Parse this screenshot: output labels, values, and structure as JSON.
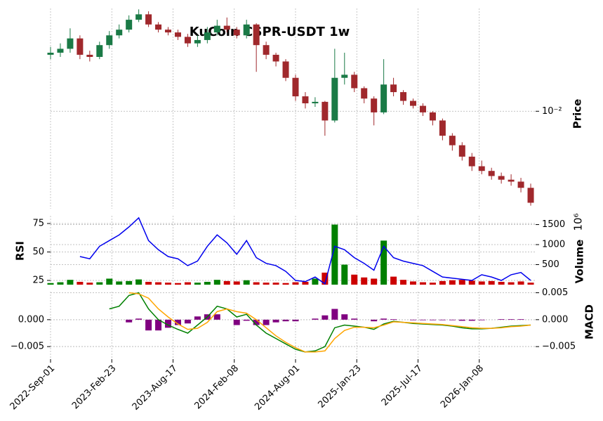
{
  "chart_data": {
    "type": "candlestick",
    "title": "KuCoin CSPR-USDT 1w",
    "ylabel": "Price",
    "ylog": true,
    "grid": true,
    "color_up": "#1a7a46",
    "color_down": "#a0282c",
    "x": [
      "2022-09-01",
      "2022-09-29",
      "2022-10-27",
      "2022-11-24",
      "2022-12-22",
      "2023-01-19",
      "2023-02-16",
      "2023-03-16",
      "2023-04-13",
      "2023-05-11",
      "2023-06-08",
      "2023-07-06",
      "2023-08-03",
      "2023-08-31",
      "2023-09-28",
      "2023-10-26",
      "2023-11-23",
      "2023-12-21",
      "2024-01-18",
      "2024-02-15",
      "2024-03-14",
      "2024-04-11",
      "2024-05-09",
      "2024-06-06",
      "2024-07-04",
      "2024-08-01",
      "2024-08-29",
      "2024-09-26",
      "2024-10-24",
      "2024-11-21",
      "2024-12-19",
      "2025-01-16",
      "2025-02-13",
      "2025-03-13",
      "2025-04-10",
      "2025-05-08",
      "2025-06-05",
      "2025-07-03",
      "2025-07-31",
      "2025-08-28",
      "2025-09-25",
      "2025-10-23",
      "2025-11-20",
      "2025-12-18",
      "2026-01-15",
      "2026-02-12",
      "2026-03-12",
      "2026-04-09",
      "2026-05-07",
      "2026-06-04"
    ],
    "open": [
      0.027,
      0.028,
      0.03,
      0.036,
      0.027,
      0.026,
      0.032,
      0.038,
      0.042,
      0.05,
      0.055,
      0.046,
      0.042,
      0.04,
      0.037,
      0.033,
      0.035,
      0.04,
      0.045,
      0.042,
      0.038,
      0.046,
      0.032,
      0.027,
      0.024,
      0.018,
      0.013,
      0.0115,
      0.0118,
      0.0085,
      0.018,
      0.019,
      0.015,
      0.0125,
      0.0098,
      0.016,
      0.014,
      0.012,
      0.011,
      0.0098,
      0.0085,
      0.0065,
      0.0055,
      0.0045,
      0.0038,
      0.0035,
      0.0032,
      0.003,
      0.0029,
      0.0026
    ],
    "high": [
      0.031,
      0.033,
      0.043,
      0.038,
      0.029,
      0.034,
      0.041,
      0.046,
      0.054,
      0.06,
      0.058,
      0.048,
      0.044,
      0.042,
      0.039,
      0.038,
      0.044,
      0.05,
      0.052,
      0.044,
      0.05,
      0.047,
      0.034,
      0.028,
      0.025,
      0.019,
      0.014,
      0.0128,
      0.012,
      0.03,
      0.028,
      0.02,
      0.0155,
      0.013,
      0.025,
      0.018,
      0.0145,
      0.0125,
      0.0115,
      0.01,
      0.0088,
      0.0068,
      0.0058,
      0.0048,
      0.0042,
      0.0037,
      0.0034,
      0.0033,
      0.0031,
      0.0028
    ],
    "low": [
      0.025,
      0.026,
      0.028,
      0.025,
      0.024,
      0.025,
      0.03,
      0.036,
      0.04,
      0.048,
      0.044,
      0.04,
      0.038,
      0.035,
      0.031,
      0.031,
      0.033,
      0.038,
      0.04,
      0.036,
      0.036,
      0.02,
      0.025,
      0.022,
      0.017,
      0.012,
      0.0105,
      0.0108,
      0.0065,
      0.0082,
      0.016,
      0.014,
      0.0115,
      0.0078,
      0.0095,
      0.013,
      0.0112,
      0.0105,
      0.0092,
      0.0078,
      0.006,
      0.005,
      0.0042,
      0.0035,
      0.0033,
      0.003,
      0.0028,
      0.0027,
      0.0024,
      0.0019
    ],
    "close": [
      0.028,
      0.03,
      0.036,
      0.027,
      0.026,
      0.032,
      0.038,
      0.042,
      0.05,
      0.055,
      0.046,
      0.042,
      0.04,
      0.037,
      0.033,
      0.035,
      0.04,
      0.045,
      0.042,
      0.038,
      0.046,
      0.032,
      0.027,
      0.024,
      0.018,
      0.013,
      0.0115,
      0.0118,
      0.0085,
      0.018,
      0.019,
      0.015,
      0.0125,
      0.0098,
      0.016,
      0.014,
      0.012,
      0.011,
      0.0098,
      0.0085,
      0.0065,
      0.0055,
      0.0045,
      0.0038,
      0.0035,
      0.0032,
      0.003,
      0.0029,
      0.0026,
      0.002
    ],
    "xlim": [
      "2022-09-01",
      "2026-06-18"
    ],
    "xticks": [
      {
        "value": "2022-09-01",
        "label": "2022-Sep-01"
      },
      {
        "value": "2023-02-23",
        "label": "2023-Feb-23"
      },
      {
        "value": "2023-08-17",
        "label": "2023-Aug-17"
      },
      {
        "value": "2024-02-08",
        "label": "2024-Feb-08"
      },
      {
        "value": "2024-08-01",
        "label": "2024-Aug-01"
      },
      {
        "value": "2025-01-23",
        "label": "2025-Jan-23"
      },
      {
        "value": "2025-07-17",
        "label": "2025-Jul-17"
      },
      {
        "value": "2026-01-08",
        "label": "2026-Jan-08"
      }
    ],
    "ylim": [
      0.0018,
      0.061
    ],
    "yticks": [
      {
        "value": 0.01,
        "label": "10⁻²"
      }
    ],
    "volume": {
      "label": "Volume",
      "offset_label": "10⁶",
      "ylim": [
        0,
        1720
      ],
      "yticks": [
        500,
        1000,
        1500
      ],
      "values": [
        40,
        60,
        120,
        70,
        50,
        60,
        150,
        80,
        90,
        130,
        70,
        60,
        50,
        40,
        60,
        50,
        70,
        120,
        90,
        80,
        110,
        60,
        50,
        50,
        40,
        60,
        70,
        150,
        300,
        1500,
        500,
        250,
        180,
        150,
        1100,
        200,
        120,
        80,
        60,
        50,
        90,
        110,
        120,
        100,
        80,
        90,
        70,
        60,
        80,
        50
      ]
    },
    "rsi": {
      "label": "RSI",
      "color": "#0000ee",
      "ylim": [
        21.3,
        81.8
      ],
      "yticks": [
        25,
        50,
        75
      ],
      "values": [
        null,
        null,
        null,
        46,
        44,
        55,
        60,
        65,
        72,
        80,
        60,
        52,
        46,
        44,
        38,
        42,
        55,
        65,
        58,
        48,
        60,
        45,
        40,
        38,
        33,
        25,
        24,
        28,
        22,
        55,
        52,
        45,
        40,
        34,
        55,
        45,
        42,
        40,
        38,
        33,
        28,
        27,
        26,
        25,
        30,
        28,
        25,
        30,
        32,
        25
      ]
    },
    "macd": {
      "label": "MACD",
      "ylim": [
        -0.0072,
        0.0052
      ],
      "yticks": [
        {
          "value": 0,
          "label": "0.000"
        },
        {
          "value": -0.005,
          "label": "−0.005"
        }
      ],
      "y2ticks": [
        {
          "value": 0.005,
          "label": "0.005"
        },
        {
          "value": 0,
          "label": "0.000"
        },
        {
          "value": -0.005,
          "label": "−0.005"
        }
      ],
      "macd": {
        "color": "#008000",
        "values": [
          null,
          null,
          null,
          null,
          null,
          null,
          0.002,
          0.0025,
          0.0045,
          0.005,
          0.002,
          0.0,
          -0.001,
          -0.0018,
          -0.0025,
          -0.001,
          0.0005,
          0.0025,
          0.002,
          0.0005,
          0.001,
          -0.001,
          -0.0025,
          -0.0035,
          -0.0045,
          -0.0055,
          -0.006,
          -0.0058,
          -0.005,
          -0.0015,
          -0.001,
          -0.0012,
          -0.0014,
          -0.0018,
          -0.0008,
          -0.0003,
          -0.0005,
          -0.0007,
          -0.0008,
          -0.0009,
          -0.001,
          -0.0012,
          -0.0015,
          -0.0017,
          -0.0017,
          -0.0016,
          -0.0014,
          -0.0012,
          -0.0011,
          -0.001
        ]
      },
      "signal": {
        "color": "#ffa500",
        "values": [
          null,
          null,
          null,
          null,
          null,
          null,
          null,
          null,
          0.005,
          0.0048,
          0.004,
          0.002,
          0.0005,
          -0.0008,
          -0.0018,
          -0.0016,
          -0.0005,
          0.0015,
          0.002,
          0.0015,
          0.0012,
          0.0,
          -0.0015,
          -0.003,
          -0.0042,
          -0.0052,
          -0.006,
          -0.006,
          -0.0058,
          -0.0035,
          -0.002,
          -0.0014,
          -0.0014,
          -0.0015,
          -0.001,
          -0.0004,
          -0.0005,
          -0.0006,
          -0.0007,
          -0.0008,
          -0.0009,
          -0.0011,
          -0.0013,
          -0.0015,
          -0.0016,
          -0.0016,
          -0.0015,
          -0.0013,
          -0.0012,
          -0.001
        ]
      },
      "histogram": {
        "color": "#800080",
        "values": [
          null,
          null,
          null,
          null,
          null,
          null,
          null,
          null,
          -0.0005,
          0.0002,
          -0.002,
          -0.002,
          -0.0015,
          -0.001,
          -0.0007,
          0.0006,
          0.001,
          0.001,
          0.0,
          -0.001,
          -0.0002,
          -0.001,
          -0.001,
          -0.0005,
          -0.0003,
          -0.0003,
          0.0,
          0.0002,
          0.0008,
          0.002,
          0.001,
          0.0002,
          0.0,
          -0.0003,
          0.0002,
          0.0001,
          0,
          -0.0001,
          -0.0001,
          -0.0001,
          -0.0001,
          -0.0001,
          -0.0002,
          -0.0002,
          -0.0001,
          0,
          0.0001,
          0.0001,
          0.0001,
          0
        ]
      }
    }
  }
}
